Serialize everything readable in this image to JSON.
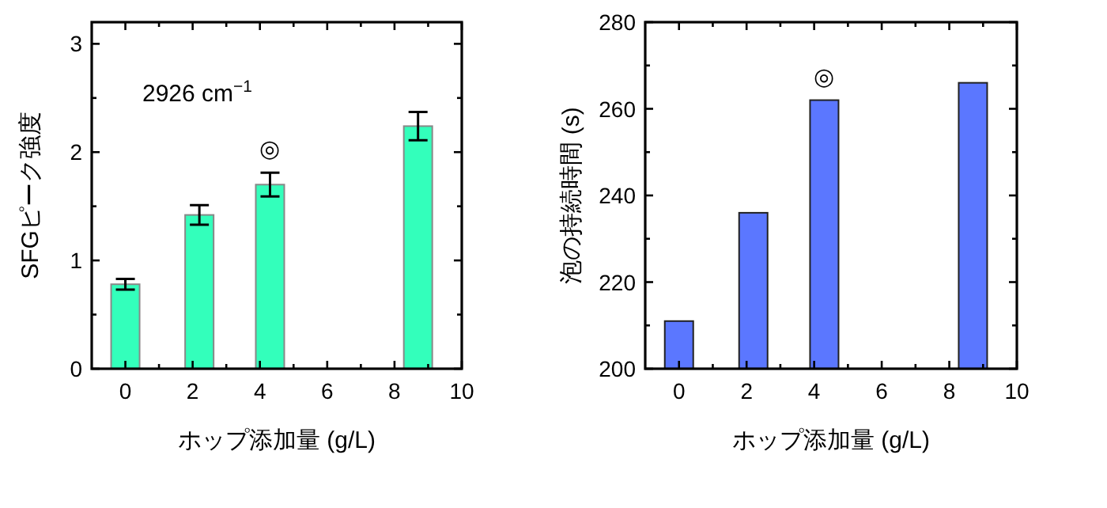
{
  "chart_data": [
    {
      "type": "bar",
      "x": [
        0,
        2.2,
        4.3,
        8.7
      ],
      "values": [
        0.78,
        1.42,
        1.7,
        2.24
      ],
      "errors": [
        0.05,
        0.09,
        0.11,
        0.13
      ],
      "color": "#33ffbb",
      "xlim": [
        -1,
        10
      ],
      "xticks": [
        0,
        {
          "value": 1,
          "label": null
        },
        2,
        {
          "value": 3,
          "label": null
        },
        4,
        {
          "value": 5,
          "label": null
        },
        6,
        {
          "value": 7,
          "label": null
        },
        8,
        {
          "value": 9,
          "label": null
        },
        10
      ],
      "ylim": [
        0,
        3.2
      ],
      "yticks": [
        0,
        {
          "value": 0.5,
          "label": null
        },
        1,
        {
          "value": 1.5,
          "label": null
        },
        2,
        {
          "value": 2.5,
          "label": null
        },
        3
      ],
      "xlabel": "ホップ添加量 (g/L)",
      "ylabel": "SFGピーク強度",
      "annotations": [
        "2926 cm$^{−1}$",
        {
          "text": "◎",
          "x": 4.3,
          "y": 1.7
        }
      ]
    },
    {
      "type": "bar",
      "x": [
        0,
        2.2,
        4.3,
        8.7
      ],
      "values": [
        211,
        236,
        262,
        266
      ],
      "color": "#5b77ff",
      "xlim": [
        -1,
        10
      ],
      "xticks": [
        0,
        {
          "value": 1,
          "label": null
        },
        2,
        {
          "value": 3,
          "label": null
        },
        4,
        {
          "value": 5,
          "label": null
        },
        6,
        {
          "value": 7,
          "label": null
        },
        8,
        {
          "value": 9,
          "label": null
        },
        10
      ],
      "ylim": [
        200,
        280
      ],
      "yticks": [
        200,
        {
          "value": 210,
          "label": null
        },
        220,
        {
          "value": 230,
          "label": null
        },
        240,
        {
          "value": 250,
          "label": null
        },
        260,
        {
          "value": 270,
          "label": null
        },
        280
      ],
      "xlabel": "ホップ添加量 (g/L)",
      "ylabel": "泡の持続時間 (s)",
      "annotations": [
        {
          "text": "◎",
          "x": 4.3,
          "y": 262
        }
      ]
    }
  ]
}
